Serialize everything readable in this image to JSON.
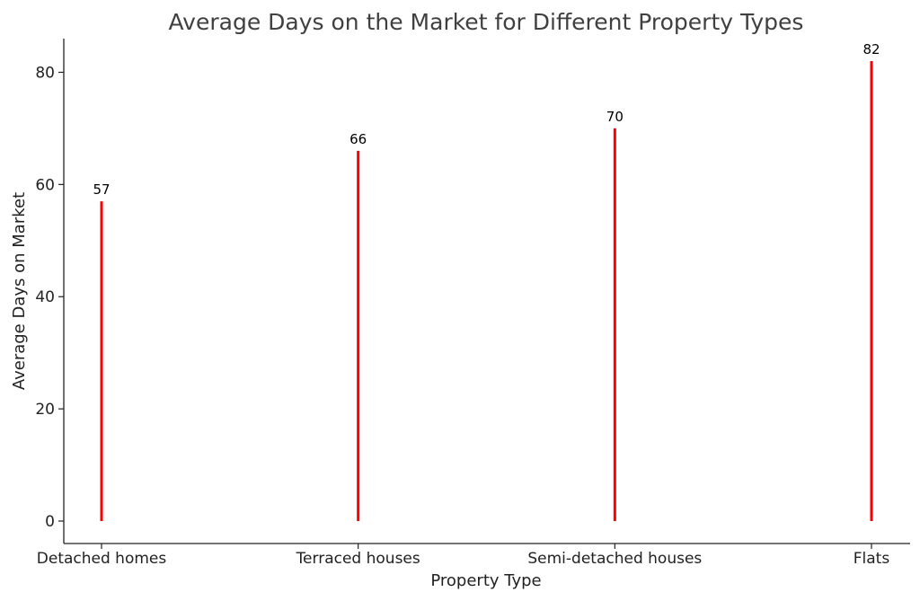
{
  "chart_data": {
    "type": "bar",
    "title": "Average Days on the Market for Different Property Types",
    "xlabel": "Property Type",
    "ylabel": "Average Days on Market",
    "categories": [
      "Detached homes",
      "Terraced houses",
      "Semi-detached houses",
      "Flats"
    ],
    "values": [
      57,
      66,
      70,
      82
    ],
    "ylim": [
      -4,
      86
    ],
    "yticks": [
      0,
      20,
      40,
      60,
      80
    ],
    "grid": false,
    "legend": "none",
    "colors": {
      "bar": "#ff0000",
      "text": "#222222",
      "title": "#404040"
    }
  }
}
